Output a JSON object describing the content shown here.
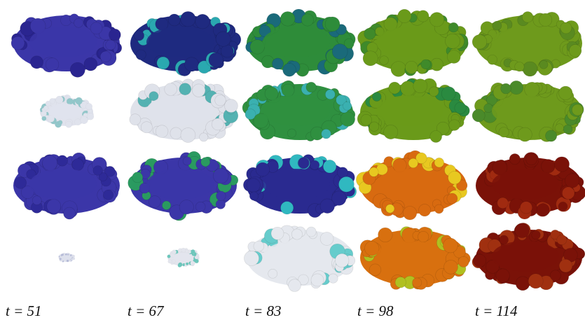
{
  "time_labels": [
    "t = 51",
    "t = 67",
    "t = 83",
    "t = 98",
    "t = 114"
  ]
}
